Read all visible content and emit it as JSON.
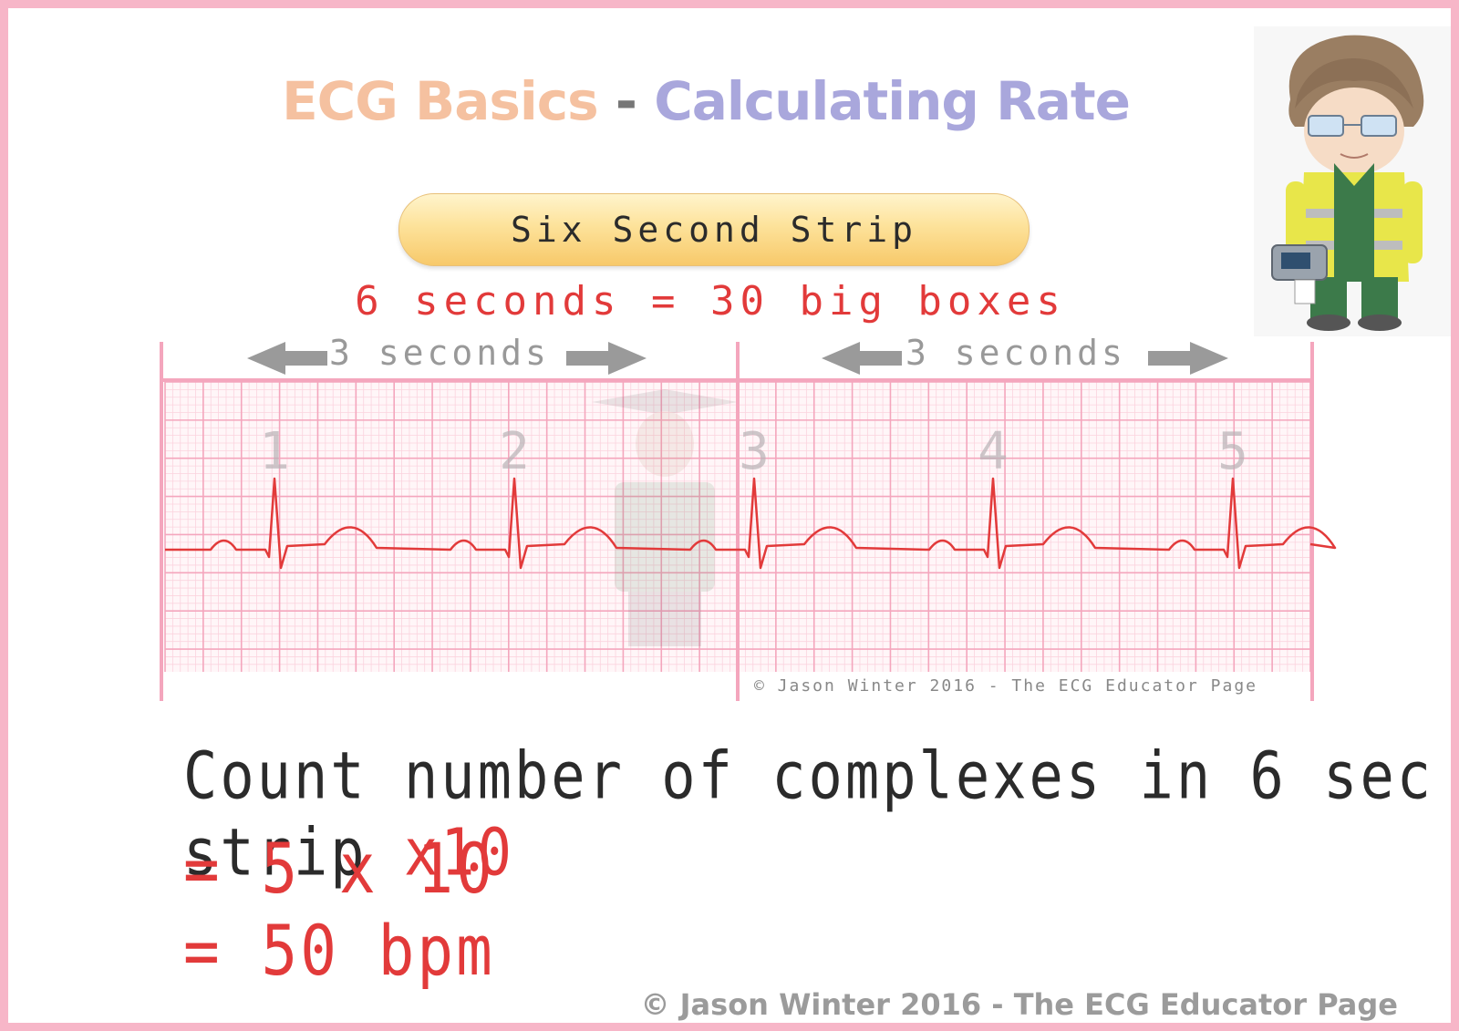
{
  "title": {
    "part1": "ECG Basics",
    "separator": "-",
    "part2": "Calculating Rate"
  },
  "colors": {
    "title_part1": "#f5c1a0",
    "title_part2": "#a9a7dc",
    "accent_red": "#e23a3a",
    "grid_pink": "#f4a6bd",
    "frame_pink": "#f7b6c8"
  },
  "pill_label": "Six Second Strip",
  "subtitle": "6 seconds = 30 big boxes",
  "strip": {
    "left_label": "3 seconds",
    "right_label": "3 seconds",
    "complex_numbers": [
      "1",
      "2",
      "3",
      "4",
      "5"
    ],
    "copyright": "© Jason Winter 2016 - The ECG Educator Page"
  },
  "explanation": {
    "line1_text": "Count number of complexes in 6 sec strip ",
    "line1_multiplier": "x10",
    "line2": "= 5 x 10",
    "line3": "= 50 bpm"
  },
  "footer": "© Jason Winter 2016 - The ECG Educator Page",
  "mascot_icon": "paramedic-character-icon"
}
